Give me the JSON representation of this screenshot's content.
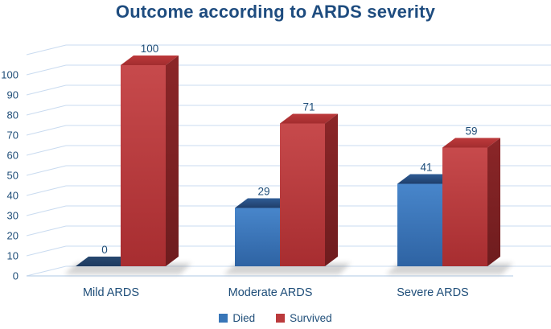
{
  "title": "Outcome according to ARDS severity",
  "palette": {
    "title_text": "#1E4C7F",
    "axis_text": "#1F4E79",
    "gridline": "#C9DBF0",
    "baseline": "#BFD4EA",
    "shadow": "#7a7a7a",
    "died": {
      "legend": "#3876B8",
      "front_light": "#4886CB",
      "front_dark": "#2E63A3",
      "top_light": "#2F5C95",
      "top_dark": "#1F3E6A",
      "zero_light": "#27486F",
      "zero_dark": "#1E3A60"
    },
    "survived": {
      "legend": "#BB3A3C",
      "front_light": "#C74A4C",
      "front_dark": "#A72D30",
      "side_light": "#8B2628",
      "side_dark": "#6E1C1E",
      "top_light": "#BC393B",
      "top_dark": "#A32D2F"
    }
  },
  "chart_data": {
    "type": "bar",
    "style": "3d-clustered-column",
    "title": "Outcome according to ARDS severity",
    "categories": [
      "Mild ARDS",
      "Moderate ARDS",
      "Severe ARDS"
    ],
    "series": [
      {
        "name": "Died",
        "color": "#3876B8",
        "values": [
          0,
          29,
          41
        ]
      },
      {
        "name": "Survived",
        "color": "#BB3A3C",
        "values": [
          100,
          71,
          59
        ]
      }
    ],
    "data_labels_shown": true,
    "xlabel": "",
    "ylabel": "",
    "ylim": [
      0,
      100
    ],
    "yticks": [
      0,
      10,
      20,
      30,
      40,
      50,
      60,
      70,
      80,
      90,
      100
    ],
    "grid": true,
    "legend_position": "bottom"
  }
}
